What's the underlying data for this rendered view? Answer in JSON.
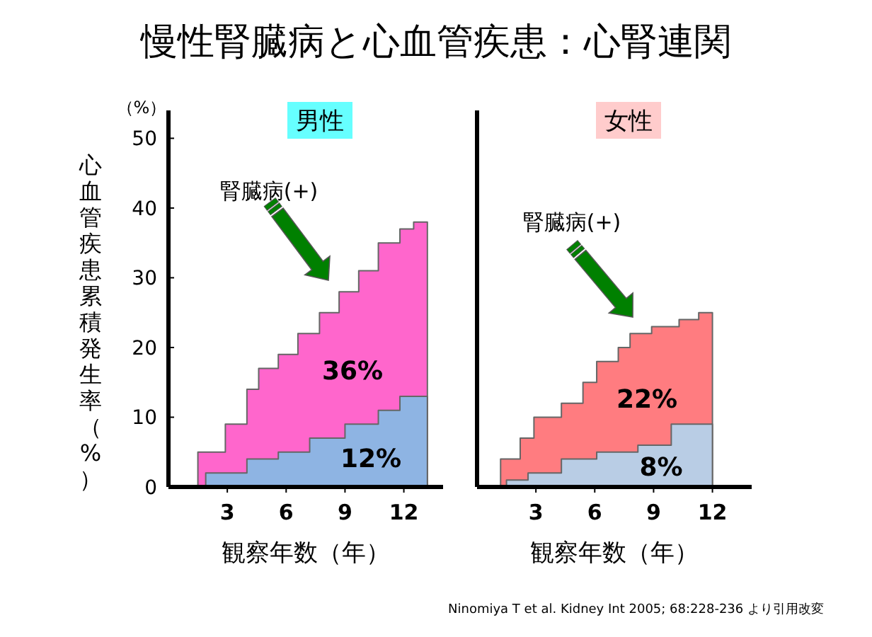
{
  "chart_data": [
    {
      "type": "area",
      "title": "慢性腎臓病と心血管疾患：心腎連関",
      "subtitle": "男性",
      "xlabel": "観察年数（年）",
      "ylabel": "心血管疾患累積発生率（%）",
      "xlim": [
        0,
        14
      ],
      "xticks": [
        3,
        6,
        9,
        12
      ],
      "ylim": [
        0,
        54
      ],
      "yticks": [
        0,
        10,
        20,
        30,
        40,
        50
      ],
      "series": [
        {
          "color": "#ff66cc",
          "x": [
            1.5,
            2.9,
            2.9,
            4,
            4,
            4.6,
            4.6,
            5.6,
            5.6,
            6.6,
            6.6,
            7.7,
            7.7,
            8.7,
            8.7,
            9.7,
            9.7,
            10.7,
            10.7,
            11.8,
            11.8,
            12.5,
            12.5,
            13.2
          ],
          "values": [
            5,
            5,
            9,
            9,
            14,
            14,
            17,
            17,
            19,
            19,
            22,
            22,
            25,
            25,
            28,
            28,
            31,
            31,
            35,
            35,
            37,
            37,
            38,
            38
          ]
        },
        {
          "color": "#8eb4e3",
          "x": [
            1.9,
            4,
            4,
            5.6,
            5.6,
            7.2,
            7.2,
            9,
            9,
            10.7,
            10.7,
            11.8,
            11.8,
            13.2
          ],
          "values": [
            2,
            2,
            4,
            4,
            5,
            5,
            7,
            7,
            9,
            9,
            11,
            11,
            13,
            13
          ]
        }
      ],
      "annotations": [
        "（%）",
        "腎臓病(+)",
        "36%",
        "12%"
      ]
    },
    {
      "type": "area",
      "subtitle": "女性",
      "xlabel": "観察年数（年）",
      "xlim": [
        0,
        14
      ],
      "xticks": [
        3,
        6,
        9,
        12
      ],
      "ylim": [
        0,
        54
      ],
      "tick_labels": "x",
      "series": [
        {
          "color": "#ff7c80",
          "x": [
            1.2,
            2.2,
            2.2,
            2.9,
            2.9,
            4.3,
            4.3,
            5.4,
            5.4,
            6.1,
            6.1,
            7.2,
            7.2,
            7.8,
            7.8,
            8.9,
            8.9,
            10.3,
            10.3,
            11.3,
            11.3,
            12
          ],
          "values": [
            4,
            4,
            7,
            7,
            10,
            10,
            12,
            12,
            15,
            15,
            18,
            18,
            20,
            20,
            22,
            22,
            23,
            23,
            24,
            24,
            25,
            25
          ]
        },
        {
          "color": "#b9cde5",
          "x": [
            1.5,
            2.6,
            2.6,
            4.3,
            4.3,
            6.1,
            6.1,
            8.2,
            8.2,
            9.9,
            9.9,
            12
          ],
          "values": [
            1,
            1,
            2,
            2,
            4,
            4,
            5,
            5,
            6,
            6,
            9,
            9
          ]
        }
      ],
      "annotations": [
        "腎臓病(+)",
        "22%",
        "8%",
        "Ninomiya T et al. Kidney Int 2005; 68:228-236 より引用改変"
      ]
    }
  ]
}
